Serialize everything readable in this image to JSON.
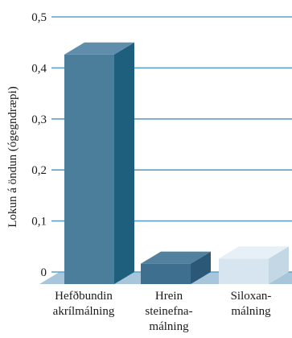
{
  "chart_data": {
    "type": "bar",
    "title": "",
    "xlabel": "",
    "ylabel": "Lokun á öndun (ógegndræpi)",
    "ylim": [
      0,
      0.5
    ],
    "yticks": [
      0,
      0.1,
      0.2,
      0.3,
      0.4,
      0.5
    ],
    "ytick_labels": [
      "0",
      "0,1",
      "0,2",
      "0,3",
      "0,4",
      "0,5"
    ],
    "grid": true,
    "categories": [
      [
        "Hefðbundin",
        "akrílmálning"
      ],
      [
        "Hrein",
        "steinefna-",
        "málning"
      ],
      [
        "Siloxan-",
        "málning"
      ]
    ],
    "values": [
      0.45,
      0.04,
      0.05
    ],
    "colors": {
      "bar1_front": "#4b7e9b",
      "bar1_side": "#1f5f7e",
      "bar1_top": "#5f8dab",
      "bar2_front": "#3f6f8e",
      "bar2_side": "#2c5877",
      "bar2_top": "#52809f",
      "bar3_front": "#d6e5ef",
      "bar3_side": "#c4d7e5",
      "bar3_top": "#e6f0f6",
      "grid": "#5aa0c8",
      "floor": "#a7c6dc"
    }
  }
}
